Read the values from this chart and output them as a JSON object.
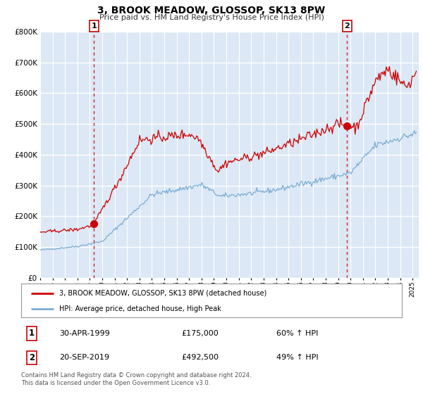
{
  "title": "3, BROOK MEADOW, GLOSSOP, SK13 8PW",
  "subtitle": "Price paid vs. HM Land Registry's House Price Index (HPI)",
  "bg_color": "#dce8f5",
  "fig_bg_color": "#ffffff",
  "grid_color": "#ffffff",
  "red_color": "#cc0000",
  "blue_color": "#7aadd4",
  "xmin": 1995.0,
  "xmax": 2025.5,
  "ymin": 0,
  "ymax": 800000,
  "yticks": [
    0,
    100000,
    200000,
    300000,
    400000,
    500000,
    600000,
    700000,
    800000
  ],
  "sale1_x": 1999.33,
  "sale1_y": 175000,
  "sale1_label": "1",
  "sale2_x": 2019.72,
  "sale2_y": 492500,
  "sale2_label": "2",
  "legend_line1": "3, BROOK MEADOW, GLOSSOP, SK13 8PW (detached house)",
  "legend_line2": "HPI: Average price, detached house, High Peak",
  "table_row1_num": "1",
  "table_row1_date": "30-APR-1999",
  "table_row1_price": "£175,000",
  "table_row1_hpi": "60% ↑ HPI",
  "table_row2_num": "2",
  "table_row2_date": "20-SEP-2019",
  "table_row2_price": "£492,500",
  "table_row2_hpi": "49% ↑ HPI",
  "footer": "Contains HM Land Registry data © Crown copyright and database right 2024.\nThis data is licensed under the Open Government Licence v3.0.",
  "xtick_years": [
    1995,
    1996,
    1997,
    1998,
    1999,
    2000,
    2001,
    2002,
    2003,
    2004,
    2005,
    2006,
    2007,
    2008,
    2009,
    2010,
    2011,
    2012,
    2013,
    2014,
    2015,
    2016,
    2017,
    2018,
    2019,
    2020,
    2021,
    2022,
    2023,
    2024,
    2025
  ]
}
